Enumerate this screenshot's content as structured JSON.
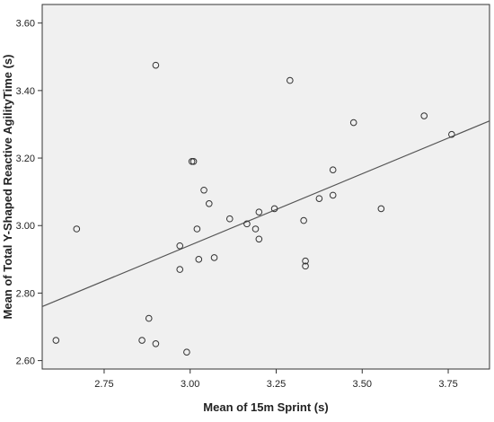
{
  "chart_data": {
    "type": "scatter",
    "title": "",
    "xlabel": "Mean of 15m Sprint (s)",
    "ylabel": "Mean of Total Y-Shaped Reactive AgilityTime (s)",
    "xlim": [
      2.57,
      3.87
    ],
    "ylim": [
      2.575,
      3.655
    ],
    "x_ticks": [
      2.75,
      3.0,
      3.25,
      3.5,
      3.75
    ],
    "x_tick_labels": [
      "2.75",
      "3.00",
      "3.25",
      "3.50",
      "3.75"
    ],
    "y_ticks": [
      2.6,
      2.8,
      3.0,
      3.2,
      3.4,
      3.6
    ],
    "y_tick_labels": [
      "2.60",
      "2.80",
      "3.00",
      "3.20",
      "3.40",
      "3.60"
    ],
    "grid": false,
    "marker": "hollow-circle",
    "colors": {
      "plot_background": "#f0f0f0",
      "marker_stroke": "#333333",
      "fit_line": "#555555",
      "axis": "#333333"
    },
    "points": [
      {
        "x": 2.61,
        "y": 2.66
      },
      {
        "x": 2.67,
        "y": 2.99
      },
      {
        "x": 2.86,
        "y": 2.66
      },
      {
        "x": 2.88,
        "y": 2.725
      },
      {
        "x": 2.9,
        "y": 2.65
      },
      {
        "x": 2.9,
        "y": 3.475
      },
      {
        "x": 2.97,
        "y": 2.94
      },
      {
        "x": 2.97,
        "y": 2.87
      },
      {
        "x": 2.99,
        "y": 2.625
      },
      {
        "x": 3.005,
        "y": 3.19
      },
      {
        "x": 3.01,
        "y": 3.19
      },
      {
        "x": 3.02,
        "y": 2.99
      },
      {
        "x": 3.025,
        "y": 2.9
      },
      {
        "x": 3.04,
        "y": 3.105
      },
      {
        "x": 3.055,
        "y": 3.065
      },
      {
        "x": 3.07,
        "y": 2.905
      },
      {
        "x": 3.115,
        "y": 3.02
      },
      {
        "x": 3.165,
        "y": 3.005
      },
      {
        "x": 3.19,
        "y": 2.99
      },
      {
        "x": 3.2,
        "y": 3.04
      },
      {
        "x": 3.2,
        "y": 2.96
      },
      {
        "x": 3.245,
        "y": 3.05
      },
      {
        "x": 3.29,
        "y": 3.43
      },
      {
        "x": 3.33,
        "y": 3.015
      },
      {
        "x": 3.335,
        "y": 2.895
      },
      {
        "x": 3.335,
        "y": 2.88
      },
      {
        "x": 3.375,
        "y": 3.08
      },
      {
        "x": 3.415,
        "y": 3.165
      },
      {
        "x": 3.415,
        "y": 3.09
      },
      {
        "x": 3.475,
        "y": 3.305
      },
      {
        "x": 3.555,
        "y": 3.05
      },
      {
        "x": 3.68,
        "y": 3.325
      },
      {
        "x": 3.76,
        "y": 3.27
      }
    ],
    "fit_line": {
      "x": [
        2.57,
        3.87
      ],
      "y": [
        2.76,
        3.31
      ]
    }
  }
}
